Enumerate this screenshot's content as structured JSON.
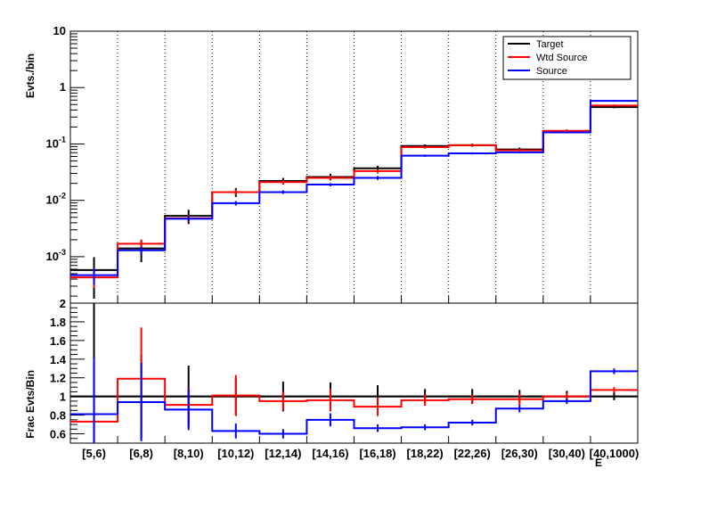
{
  "chart_data": [
    {
      "type": "line",
      "panel": "top",
      "ylabel": "Evts./bin",
      "yscale": "log",
      "ylim": [
        0.00015,
        10
      ],
      "grid_x": true,
      "categories": [
        "[5,6)",
        "[6,8)",
        "[8,10)",
        "[10,12)",
        "[12,14)",
        "[14,16)",
        "[16,18)",
        "[18,22)",
        "[22,26)",
        "[26,30)",
        "[30,40)",
        "[40,1000)"
      ],
      "y_tick_labels": [
        "10^-3",
        "10^-2",
        "10^-1",
        "1",
        "10"
      ],
      "legend": {
        "placement": "top-right",
        "entries": [
          "Target",
          "Wtd Source",
          "Source"
        ]
      },
      "series": [
        {
          "name": "Target",
          "color": "#000000",
          "values": [
            0.00058,
            0.0014,
            0.0053,
            0.014,
            0.022,
            0.026,
            0.037,
            0.092,
            0.095,
            0.08,
            0.17,
            0.45
          ],
          "errors": [
            0.0004,
            0.0006,
            0.0015,
            0.0025,
            0.003,
            0.0035,
            0.004,
            0.006,
            0.006,
            0.006,
            0.01,
            0.02
          ]
        },
        {
          "name": "Wtd Source",
          "color": "#ff0000",
          "values": [
            0.00043,
            0.0017,
            0.0048,
            0.014,
            0.021,
            0.025,
            0.033,
            0.088,
            0.095,
            0.077,
            0.17,
            0.48
          ],
          "errors": [
            0.00015,
            0.0003,
            0.0007,
            0.0015,
            0.002,
            0.0025,
            0.003,
            0.005,
            0.005,
            0.005,
            0.01,
            0.02
          ]
        },
        {
          "name": "Source",
          "color": "#0000ff",
          "values": [
            0.00047,
            0.0013,
            0.0047,
            0.0089,
            0.014,
            0.019,
            0.025,
            0.062,
            0.068,
            0.071,
            0.16,
            0.58
          ],
          "errors": [
            0.00015,
            0.0002,
            0.0005,
            0.0008,
            0.001,
            0.0012,
            0.002,
            0.003,
            0.003,
            0.003,
            0.006,
            0.02
          ]
        }
      ]
    },
    {
      "type": "line",
      "panel": "bottom",
      "ylabel": "Frac Evts/Bin",
      "xlabel": "E",
      "ylim": [
        0.5,
        2.0
      ],
      "y_tick_labels": [
        "0.6",
        "0.8",
        "1",
        "1.2",
        "1.4",
        "1.6",
        "1.8",
        "2"
      ],
      "reference_line": 1,
      "categories": [
        "[5,6)",
        "[6,8)",
        "[8,10)",
        "[10,12)",
        "[12,14)",
        "[14,16)",
        "[16,18)",
        "[18,22)",
        "[22,26)",
        "[26,30)",
        "[30,40)",
        "[40,1000)"
      ],
      "series": [
        {
          "name": "Target",
          "color": "#000000",
          "values": [
            1,
            1,
            1,
            1,
            1,
            1,
            1,
            1,
            1,
            1,
            1,
            1
          ],
          "errors": [
            1.0,
            0.45,
            0.33,
            0.2,
            0.16,
            0.15,
            0.12,
            0.08,
            0.08,
            0.07,
            0.06,
            0.04
          ]
        },
        {
          "name": "Wtd Source",
          "color": "#ff0000",
          "values": [
            0.73,
            1.19,
            0.91,
            1.01,
            0.95,
            0.96,
            0.89,
            0.96,
            0.97,
            0.97,
            1.0,
            1.07
          ],
          "errors": [
            0.25,
            0.55,
            0.18,
            0.22,
            0.1,
            0.12,
            0.1,
            0.06,
            0.05,
            0.06,
            0.04,
            0.03
          ]
        },
        {
          "name": "Source",
          "color": "#0000ff",
          "values": [
            0.81,
            0.94,
            0.86,
            0.63,
            0.6,
            0.75,
            0.66,
            0.67,
            0.72,
            0.87,
            0.95,
            1.27
          ],
          "errors": [
            0.6,
            0.42,
            0.22,
            0.08,
            0.05,
            0.07,
            0.04,
            0.03,
            0.03,
            0.04,
            0.03,
            0.03
          ]
        }
      ]
    }
  ]
}
